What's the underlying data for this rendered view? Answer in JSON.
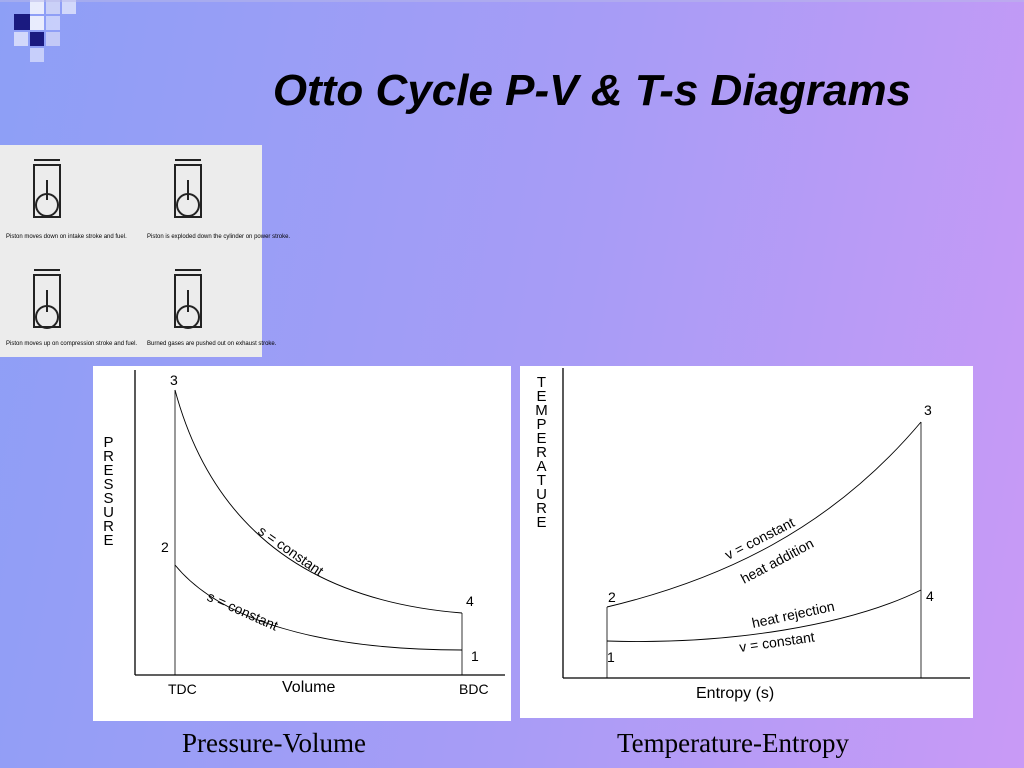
{
  "title": "Otto Cycle P-V & T-s Diagrams",
  "engine_strokes": [
    {
      "caption": "Piston moves down on intake stroke and fuel."
    },
    {
      "caption": "Piston is exploded down the cylinder on power stroke."
    },
    {
      "caption": "Piston moves up on compression stroke and fuel."
    },
    {
      "caption": "Burned gases are pushed out on exhaust stroke."
    }
  ],
  "pv_diagram": {
    "caption": "Pressure-Volume",
    "y_label": "PRESSURE",
    "x_label": "Volume",
    "x_markers": [
      "TDC",
      "BDC"
    ],
    "points": [
      "1",
      "2",
      "3",
      "4"
    ],
    "annotations": [
      "s = constant",
      "s = constant"
    ]
  },
  "ts_diagram": {
    "caption": "Temperature-Entropy",
    "y_label": "TEMPERATURE",
    "x_label": "Entropy (s)",
    "points": [
      "1",
      "2",
      "3",
      "4"
    ],
    "annotations": [
      "v = constant",
      "heat addition",
      "heat rejection",
      "v = constant"
    ]
  }
}
